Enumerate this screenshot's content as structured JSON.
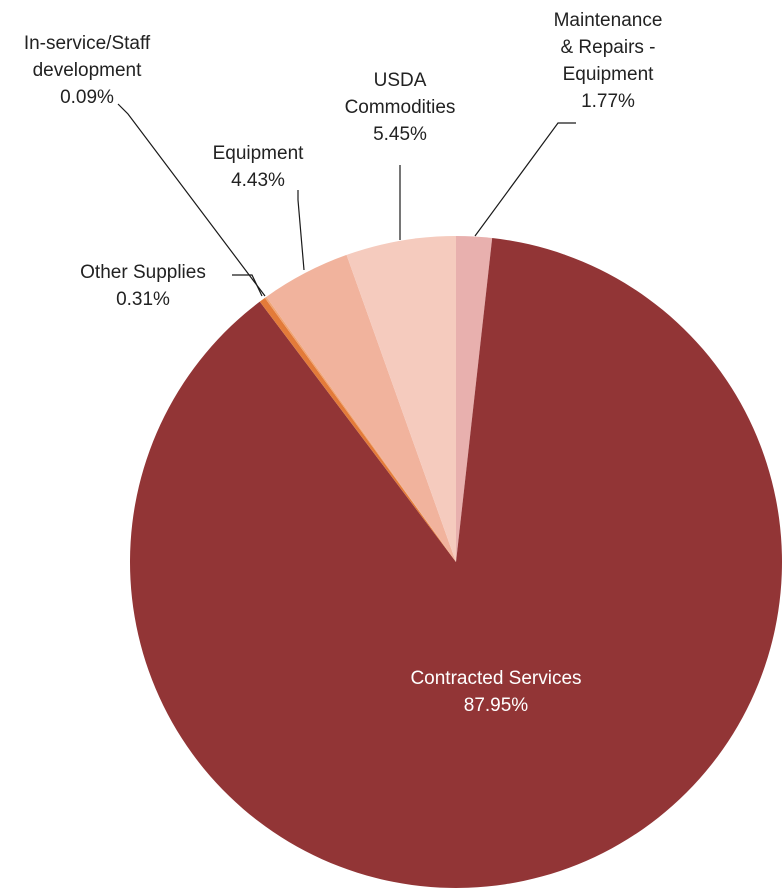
{
  "chart_data": {
    "type": "pie",
    "title": "",
    "slices": [
      {
        "name": "Maintenance & Repairs - Equipment",
        "label_lines": [
          "Maintenance",
          "& Repairs -",
          "Equipment"
        ],
        "value": 1.77,
        "value_label": "1.77%",
        "color": "#E8B0AE"
      },
      {
        "name": "Contracted Services",
        "label_lines": [
          "Contracted Services"
        ],
        "value": 87.95,
        "value_label": "87.95%",
        "color": "#923536"
      },
      {
        "name": "Other Supplies",
        "label_lines": [
          "Other Supplies"
        ],
        "value": 0.31,
        "value_label": "0.31%",
        "color": "#E37B39"
      },
      {
        "name": "In-service/Staff development",
        "label_lines": [
          "In-service/Staff",
          "development"
        ],
        "value": 0.09,
        "value_label": "0.09%",
        "color": "#F0A475"
      },
      {
        "name": "Equipment",
        "label_lines": [
          "Equipment"
        ],
        "value": 4.43,
        "value_label": "4.43%",
        "color": "#F1B39D"
      },
      {
        "name": "USDA Commodities",
        "label_lines": [
          "USDA",
          "Commodities"
        ],
        "value": 5.45,
        "value_label": "5.45%",
        "color": "#F5CBBE"
      }
    ],
    "start_angle": "12 o'clock",
    "direction": "clockwise",
    "legend": "none"
  }
}
